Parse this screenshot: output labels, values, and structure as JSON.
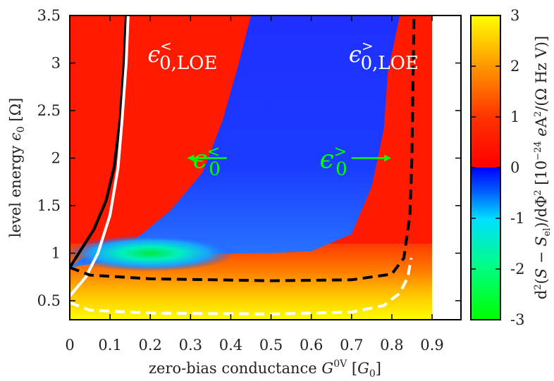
{
  "chart_data": {
    "type": "heatmap",
    "title": "",
    "xlabel": "zero-bias conductance G^0V [G_0]",
    "ylabel": "level energy ε_0 [Ω]",
    "xlim": [
      0,
      0.97
    ],
    "ylim": [
      0.3,
      3.5
    ],
    "x_ticks": [
      "0",
      "0.1",
      "0.2",
      "0.3",
      "0.4",
      "0.5",
      "0.6",
      "0.7",
      "0.8",
      "0.9"
    ],
    "y_ticks": [
      "0.5",
      "1",
      "1.5",
      "2",
      "2.5",
      "3",
      "3.5"
    ],
    "colorbar": {
      "label": "d²(S − S_el)/dΦ² [10^−24 eA²/(Ω Hz V)]",
      "range": [
        -3,
        3
      ],
      "ticks": [
        "-3",
        "-2",
        "-1",
        "0",
        "1",
        "2",
        "3"
      ],
      "colors": {
        "-3": "#00ff00",
        "-2": "#00ffff",
        "-1": "#0000ff",
        "0": "#ff0000",
        "1": "#ff4500",
        "2": "#ffa500",
        "3": "#ffff00"
      }
    },
    "regions": [
      {
        "name": "negative-region",
        "approx_value": -0.8
      },
      {
        "name": "positive-region",
        "approx_value": 0.8
      }
    ],
    "boundary_left": [
      [
        0.0,
        0.85
      ],
      [
        0.1,
        0.92
      ],
      [
        0.15,
        1.1
      ],
      [
        0.25,
        1.45
      ],
      [
        0.33,
        1.85
      ],
      [
        0.38,
        2.4
      ],
      [
        0.42,
        3.0
      ],
      [
        0.45,
        3.5
      ]
    ],
    "boundary_right": [
      [
        0.6,
        1.02
      ],
      [
        0.7,
        1.2
      ],
      [
        0.75,
        1.7
      ],
      [
        0.78,
        2.3
      ],
      [
        0.79,
        2.9
      ],
      [
        0.82,
        3.5
      ]
    ],
    "series": [
      {
        "name": "",
        "color": "#000000",
        "style": "solid",
        "points": [
          [
            0.0,
            0.85
          ],
          [
            0.03,
            1.05
          ],
          [
            0.06,
            1.25
          ],
          [
            0.09,
            1.55
          ],
          [
            0.11,
            1.9
          ],
          [
            0.125,
            2.4
          ],
          [
            0.135,
            3.0
          ],
          [
            0.14,
            3.5
          ]
        ]
      },
      {
        "name": "",
        "color": "#ffffff",
        "style": "solid",
        "points": [
          [
            0.0,
            0.55
          ],
          [
            0.04,
            0.75
          ],
          [
            0.07,
            1.0
          ],
          [
            0.1,
            1.4
          ],
          [
            0.12,
            1.9
          ],
          [
            0.13,
            2.4
          ],
          [
            0.14,
            3.0
          ],
          [
            0.145,
            3.5
          ]
        ]
      },
      {
        "name": "",
        "color": "#000000",
        "style": "dashed",
        "points": [
          [
            0.0,
            0.85
          ],
          [
            0.05,
            0.77
          ],
          [
            0.2,
            0.73
          ],
          [
            0.5,
            0.71
          ],
          [
            0.7,
            0.72
          ],
          [
            0.8,
            0.78
          ],
          [
            0.83,
            0.95
          ],
          [
            0.845,
            1.4
          ],
          [
            0.85,
            2.0
          ],
          [
            0.855,
            3.5
          ]
        ]
      },
      {
        "name": "",
        "color": "#ffffff",
        "style": "dashed",
        "points": [
          [
            0.0,
            0.48
          ],
          [
            0.05,
            0.4
          ],
          [
            0.2,
            0.37
          ],
          [
            0.5,
            0.36
          ],
          [
            0.7,
            0.38
          ],
          [
            0.78,
            0.45
          ],
          [
            0.82,
            0.58
          ],
          [
            0.84,
            0.75
          ],
          [
            0.848,
            0.95
          ]
        ]
      }
    ],
    "annotations": [
      {
        "name": "eps0-lt-loe",
        "main": "ϵ",
        "sub": "0,LOE",
        "sup": "<",
        "color": "#ffffff",
        "x": 0.28,
        "y": 3.1
      },
      {
        "name": "eps0-gt-loe",
        "main": "ϵ",
        "sub": "0,LOE",
        "sup": ">",
        "color": "#ffffff",
        "x": 0.78,
        "y": 3.1
      },
      {
        "name": "eps0-lt",
        "main": "ϵ",
        "sub": "0",
        "sup": "<",
        "color": "#00ff00",
        "x": 0.34,
        "y": 2.0
      },
      {
        "name": "eps0-gt",
        "main": "ϵ",
        "sub": "0",
        "sup": ">",
        "color": "#00ff00",
        "x": 0.655,
        "y": 2.0
      }
    ],
    "arrows": [
      {
        "name": "arrow-left",
        "from": [
          0.39,
          2.0
        ],
        "to": [
          0.295,
          2.0
        ],
        "color": "#00ff00"
      },
      {
        "name": "arrow-right",
        "from": [
          0.7,
          2.0
        ],
        "to": [
          0.795,
          2.0
        ],
        "color": "#00ff00"
      }
    ]
  }
}
